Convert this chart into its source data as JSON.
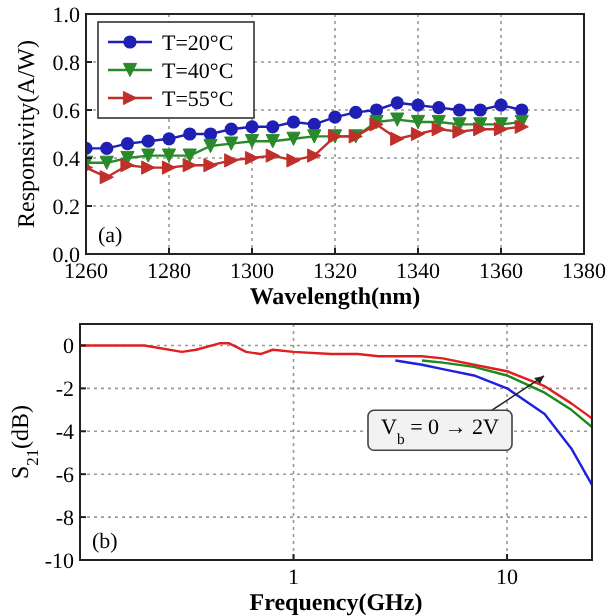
{
  "chart_data": [
    {
      "type": "line",
      "xlabel": "Wavelength(nm)",
      "ylabel": "Responsivity(A/W)",
      "x": [
        1260,
        1265,
        1270,
        1275,
        1280,
        1285,
        1290,
        1295,
        1300,
        1305,
        1310,
        1315,
        1320,
        1325,
        1330,
        1335,
        1340,
        1345,
        1350,
        1355,
        1360,
        1365
      ],
      "series": [
        {
          "name": "T=20°C",
          "color": "#1f1fb4",
          "marker": "circle",
          "values": [
            0.44,
            0.44,
            0.46,
            0.47,
            0.48,
            0.5,
            0.5,
            0.52,
            0.53,
            0.53,
            0.55,
            0.54,
            0.57,
            0.59,
            0.6,
            0.63,
            0.62,
            0.61,
            0.6,
            0.6,
            0.62,
            0.6
          ]
        },
        {
          "name": "T=40°C",
          "color": "#2a8a2a",
          "marker": "triangle-down",
          "values": [
            0.38,
            0.38,
            0.4,
            0.41,
            0.41,
            0.41,
            0.45,
            0.46,
            0.47,
            0.47,
            0.48,
            0.49,
            0.49,
            0.49,
            0.55,
            0.56,
            0.55,
            0.55,
            0.54,
            0.54,
            0.54,
            0.55
          ]
        },
        {
          "name": "T=55°C",
          "color": "#c0302a",
          "marker": "triangle-right",
          "values": [
            0.36,
            0.32,
            0.37,
            0.36,
            0.36,
            0.37,
            0.37,
            0.39,
            0.4,
            0.41,
            0.39,
            0.41,
            0.49,
            0.49,
            0.54,
            0.48,
            0.5,
            0.52,
            0.51,
            0.52,
            0.52,
            0.53
          ]
        }
      ],
      "xlim": [
        1260,
        1380
      ],
      "xticks": [
        1260,
        1280,
        1300,
        1320,
        1340,
        1360,
        1380
      ],
      "ylim": [
        0,
        1
      ],
      "yticks": [
        {
          "value": 0,
          "label": "0.0"
        },
        0.2,
        0.4,
        0.6,
        0.8,
        {
          "value": 1,
          "label": "1.0"
        }
      ],
      "grid": true,
      "legend": "top left",
      "annotations": [
        "(a)"
      ]
    },
    {
      "type": "line",
      "xlabel": "Frequency(GHz)",
      "ylabel": "S$_{21}$(dB)",
      "log": "x",
      "x": [
        0.1,
        0.2,
        0.3,
        0.35,
        0.45,
        0.5,
        0.6,
        0.7,
        0.8,
        1,
        1.5,
        2,
        2.5,
        3,
        4,
        5,
        7,
        10,
        15,
        20,
        25
      ],
      "series": [
        {
          "color": "#2020e0",
          "values": [
            null,
            null,
            null,
            null,
            null,
            null,
            null,
            null,
            null,
            null,
            null,
            null,
            null,
            -0.7,
            -0.9,
            -1.1,
            -1.4,
            -2.0,
            -3.2,
            -4.8,
            -6.5
          ]
        },
        {
          "color": "#1a8a1a",
          "values": [
            null,
            null,
            null,
            null,
            null,
            null,
            null,
            null,
            null,
            null,
            null,
            null,
            null,
            null,
            -0.7,
            -0.8,
            -1.0,
            -1.4,
            -2.2,
            -3.0,
            -3.8
          ]
        },
        {
          "color": "#e02020",
          "values": [
            0,
            0,
            -0.3,
            -0.2,
            0.1,
            0.1,
            -0.3,
            -0.4,
            -0.2,
            -0.3,
            -0.4,
            -0.4,
            -0.5,
            -0.5,
            -0.5,
            -0.6,
            -0.9,
            -1.2,
            -1.9,
            -2.7,
            -3.4
          ]
        }
      ],
      "xlim": [
        0.1,
        25
      ],
      "xticks": [
        1,
        10
      ],
      "ylim": [
        -10,
        1
      ],
      "yticks": [
        -10,
        -8,
        -6,
        -4,
        -2,
        0
      ],
      "grid": true,
      "annotations": [
        "V$_{b}$ = 0 → 2V",
        "(b)"
      ]
    }
  ]
}
